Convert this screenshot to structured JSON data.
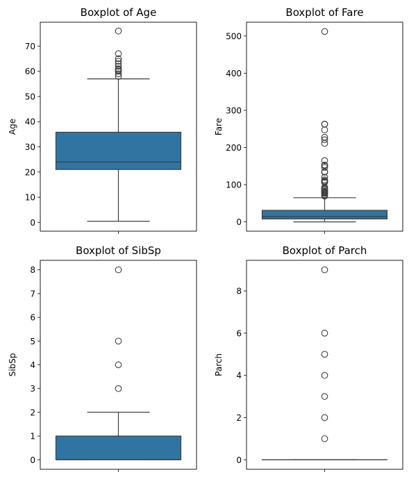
{
  "colors": {
    "box": "#3274a1",
    "edge": "#3d3d3d",
    "outlier_face": "none"
  },
  "chart_data": [
    {
      "type": "box",
      "title": "Boxplot of Age",
      "ylabel": "Age",
      "ylim": [
        -3.5,
        79.5
      ],
      "yticks": [
        0,
        10,
        20,
        30,
        40,
        50,
        60,
        70
      ],
      "ytick_labels": [
        "0",
        "10",
        "20",
        "30",
        "40",
        "50",
        "60",
        "70"
      ],
      "box": {
        "whisker_low": 0.42,
        "q1": 21,
        "median": 24,
        "q3": 35.8,
        "whisker_high": 57
      },
      "outliers": [
        58,
        59,
        60,
        60.5,
        61,
        62,
        63,
        64,
        65,
        67,
        76
      ]
    },
    {
      "type": "box",
      "title": "Boxplot of Fare",
      "ylabel": "Fare",
      "ylim": [
        -25,
        537
      ],
      "yticks": [
        0,
        100,
        200,
        300,
        400,
        500
      ],
      "ytick_labels": [
        "0",
        "100",
        "200",
        "300",
        "400",
        "500"
      ],
      "box": {
        "whisker_low": 0,
        "q1": 7.9,
        "median": 14.5,
        "q3": 31,
        "whisker_high": 65
      },
      "outliers": [
        69.5,
        71,
        73,
        76.7,
        78,
        79,
        80,
        82,
        83,
        86.5,
        89,
        90,
        93.5,
        106,
        108,
        110,
        113,
        120,
        133.7,
        135,
        146.5,
        151.5,
        153,
        164.8,
        211,
        221,
        227.5,
        247.5,
        262.4,
        263,
        512
      ]
    },
    {
      "type": "box",
      "title": "Boxplot of SibSp",
      "ylabel": "SibSp",
      "ylim": [
        -0.4,
        8.4
      ],
      "yticks": [
        0,
        1,
        2,
        3,
        4,
        5,
        6,
        7,
        8
      ],
      "ytick_labels": [
        "0",
        "1",
        "2",
        "3",
        "4",
        "5",
        "6",
        "7",
        "8"
      ],
      "box": {
        "whisker_low": 0,
        "q1": 0,
        "median": 0,
        "q3": 1,
        "whisker_high": 2
      },
      "outliers": [
        3,
        4,
        5,
        8
      ]
    },
    {
      "type": "box",
      "title": "Boxplot of Parch",
      "ylabel": "Parch",
      "ylim": [
        -0.45,
        9.45
      ],
      "yticks": [
        0,
        2,
        4,
        6,
        8
      ],
      "ytick_labels": [
        "0",
        "2",
        "4",
        "6",
        "8"
      ],
      "box": {
        "whisker_low": 0,
        "q1": 0,
        "median": 0,
        "q3": 0,
        "whisker_high": 0
      },
      "outliers": [
        1,
        2,
        3,
        4,
        5,
        6,
        9
      ]
    }
  ]
}
